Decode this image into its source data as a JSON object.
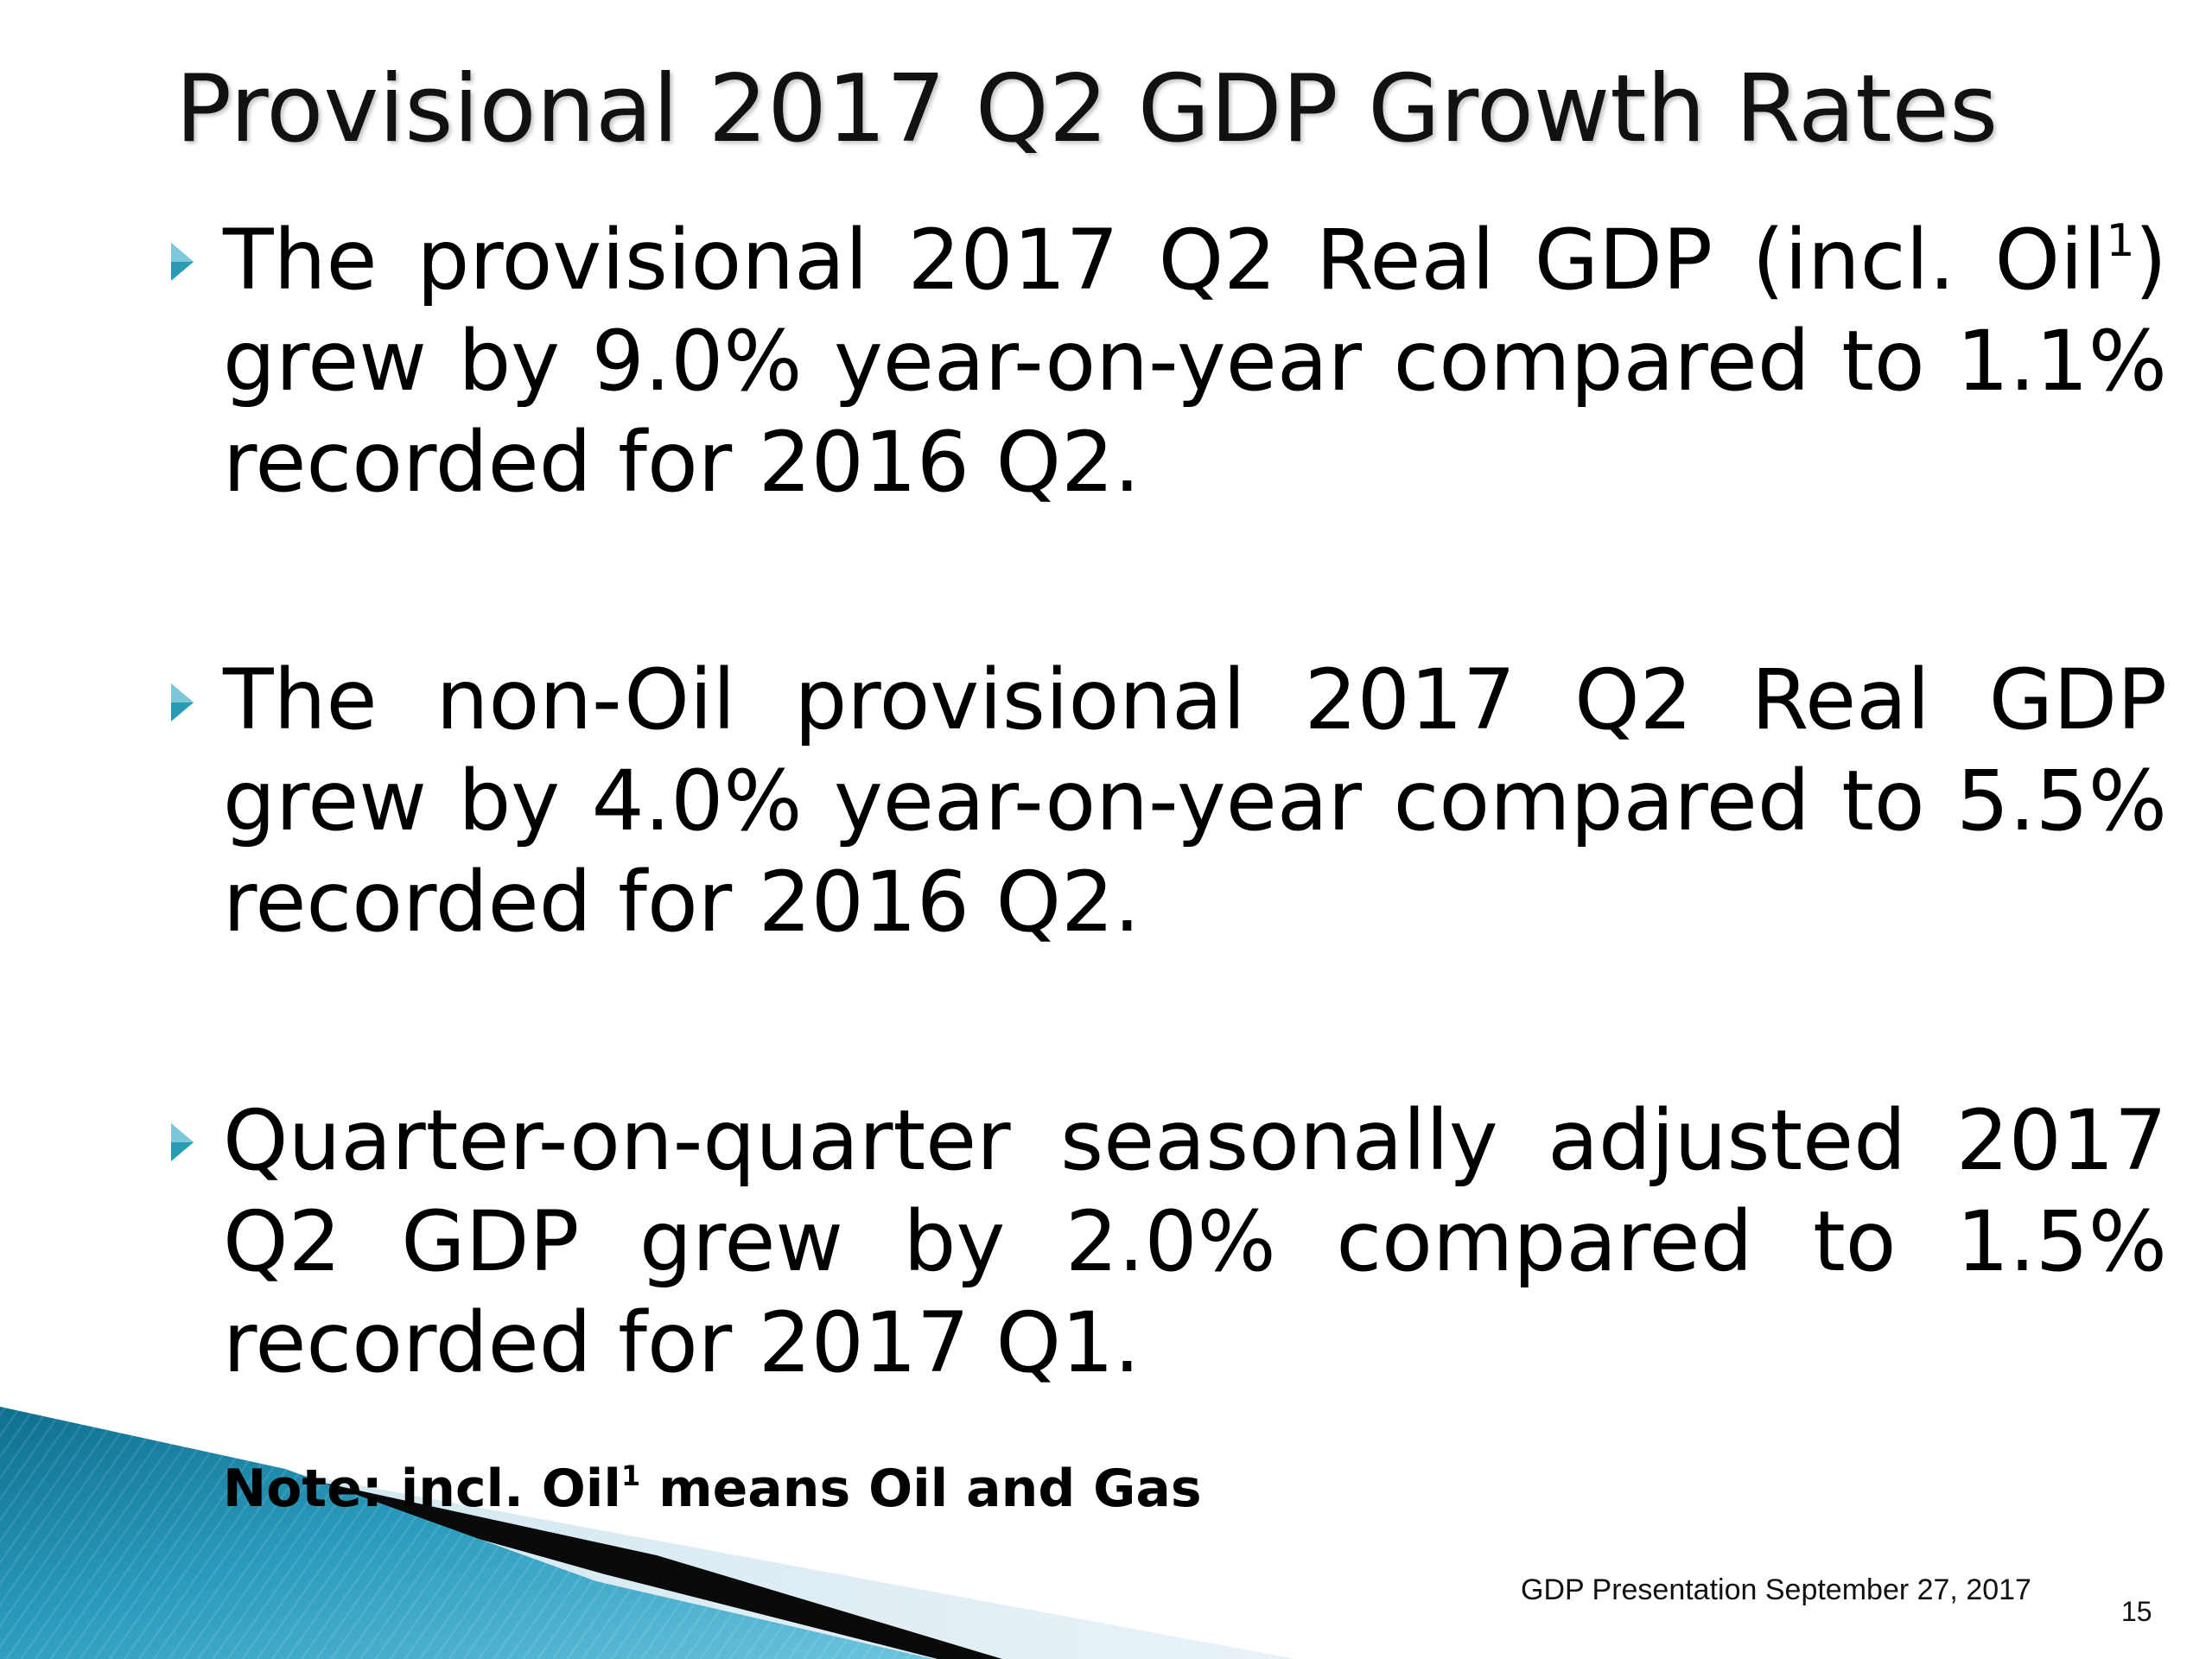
{
  "slide": {
    "title": "Provisional 2017 Q2 GDP Growth Rates",
    "bullets": [
      {
        "text_before_sup": "The provisional 2017 Q2 Real GDP (incl. Oil",
        "sup": "1",
        "text_after_sup": ") grew by 9.0% year-on-year compared to 1.1% recorded for 2016 Q2."
      },
      {
        "text": "The non-Oil provisional 2017 Q2 Real GDP grew by 4.0% year-on-year compared to 5.5% recorded for 2016 Q2."
      },
      {
        "text": "Quarter-on-quarter seasonally adjusted 2017 Q2 GDP grew by 2.0% compared to 1.5% recorded for 2017 Q1."
      }
    ],
    "note": {
      "label": "Note:",
      "text_before_sup": " incl. Oil",
      "sup": "1",
      "text_after_sup": " means Oil and Gas"
    },
    "footer": {
      "text": "GDP Presentation September 27, 2017",
      "page_number": "15"
    },
    "colors": {
      "bullet_arrow": "#2a9bb4",
      "accent_teal": "#1f8fad",
      "accent_light_blue": "#d5e8ef"
    },
    "icons": {
      "bullet": "triangle-right-icon"
    }
  }
}
